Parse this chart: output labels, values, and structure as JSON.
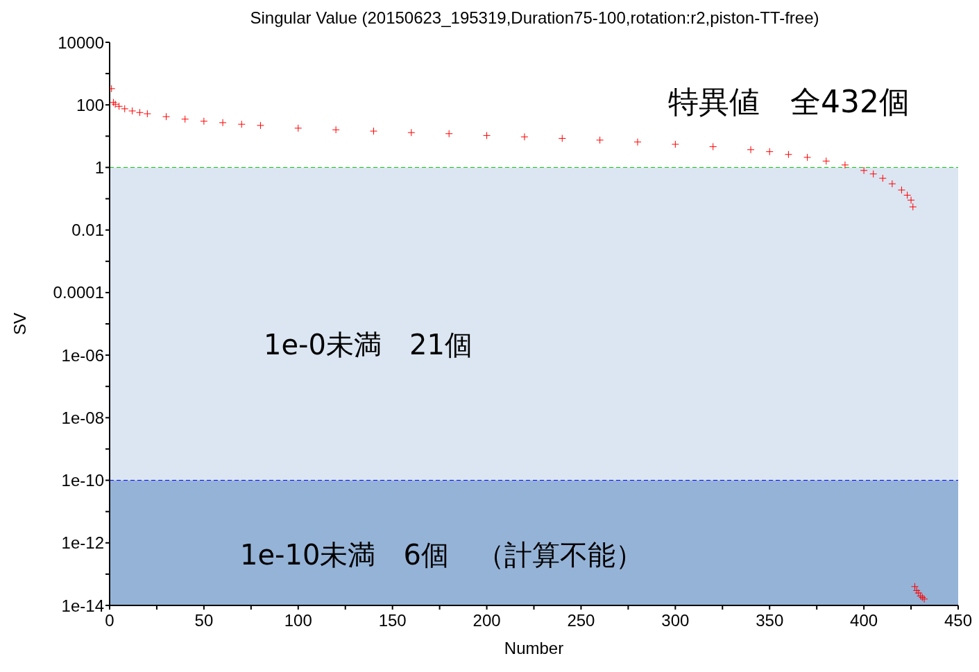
{
  "chart_data": {
    "type": "scatter",
    "title": "Singular Value (20150623_195319,Duration75-100,rotation:r2,piston-TT-free)",
    "xlabel": "Number",
    "ylabel": "SV",
    "annotations": [
      "特異値　全432個",
      "1e-0未満　21個",
      "1e-10未満　6個　（計算不能）"
    ],
    "log": "y",
    "grid": false,
    "legend": false,
    "marker": "cross",
    "xlim": [
      0,
      450
    ],
    "xticks": [
      0,
      {
        "value": 25,
        "label": null
      },
      50,
      {
        "value": 75,
        "label": null
      },
      100,
      {
        "value": 125,
        "label": null
      },
      150,
      {
        "value": 175,
        "label": null
      },
      200,
      {
        "value": 225,
        "label": null
      },
      250,
      {
        "value": 275,
        "label": null
      },
      300,
      {
        "value": 325,
        "label": null
      },
      350,
      {
        "value": 375,
        "label": null
      },
      400,
      {
        "value": 425,
        "label": null
      },
      450
    ],
    "ylim": [
      1e-14,
      10000
    ],
    "yticks": [
      {
        "value": 10000,
        "label": "10000"
      },
      {
        "value": 1000,
        "label": null
      },
      {
        "value": 100,
        "label": "100"
      },
      {
        "value": 10,
        "label": null
      },
      {
        "value": 1,
        "label": "1"
      },
      {
        "value": 0.1,
        "label": null
      },
      {
        "value": 0.01,
        "label": "0.01"
      },
      {
        "value": 0.001,
        "label": null
      },
      {
        "value": 0.0001,
        "label": "0.0001"
      },
      {
        "value": 1e-05,
        "label": null
      },
      {
        "value": 1e-06,
        "label": "1e-06"
      },
      {
        "value": 1e-07,
        "label": null
      },
      {
        "value": 1e-08,
        "label": "1e-08"
      },
      {
        "value": 1e-09,
        "label": null
      },
      {
        "value": 1e-10,
        "label": "1e-10"
      },
      {
        "value": 1e-11,
        "label": null
      },
      {
        "value": 1e-12,
        "label": "1e-12"
      },
      {
        "value": 1e-13,
        "label": null
      },
      {
        "value": 1e-14,
        "label": "1e-14"
      }
    ],
    "bands": [
      {
        "axis": "y",
        "from": 1e-10,
        "to": 1,
        "color": "#dce6f2"
      },
      {
        "axis": "y",
        "from": 1e-14,
        "to": 1e-10,
        "color": "#95b3d7"
      }
    ],
    "ref_lines": [
      {
        "axis": "y",
        "value": 1,
        "color": "#00cc00",
        "line_style": "dashed"
      },
      {
        "axis": "y",
        "value": 1e-10,
        "color": "#0000ff",
        "line_style": "dashed"
      }
    ],
    "series": [
      {
        "color": "#ff0000",
        "x": [
          1,
          2,
          3,
          5,
          8,
          12,
          16,
          20,
          30,
          40,
          50,
          60,
          70,
          80,
          100,
          120,
          140,
          160,
          180,
          200,
          220,
          240,
          260,
          280,
          300,
          320,
          340,
          350,
          360,
          370,
          380,
          390,
          400,
          405,
          410,
          415,
          420,
          423,
          425,
          426,
          427,
          428,
          429,
          430,
          431,
          432
        ],
        "values": [
          330,
          120,
          105,
          90,
          75,
          64,
          57,
          52,
          42,
          35,
          30,
          27,
          24,
          22,
          18,
          16,
          14.5,
          13,
          12,
          10.5,
          9.5,
          8.5,
          7.5,
          6.5,
          5.5,
          4.6,
          3.7,
          3.2,
          2.6,
          2.1,
          1.6,
          1.2,
          0.8,
          0.62,
          0.45,
          0.3,
          0.19,
          0.13,
          0.09,
          0.055,
          4e-14,
          3e-14,
          2.5e-14,
          2e-14,
          1.8e-14,
          1.6e-14
        ]
      }
    ]
  }
}
